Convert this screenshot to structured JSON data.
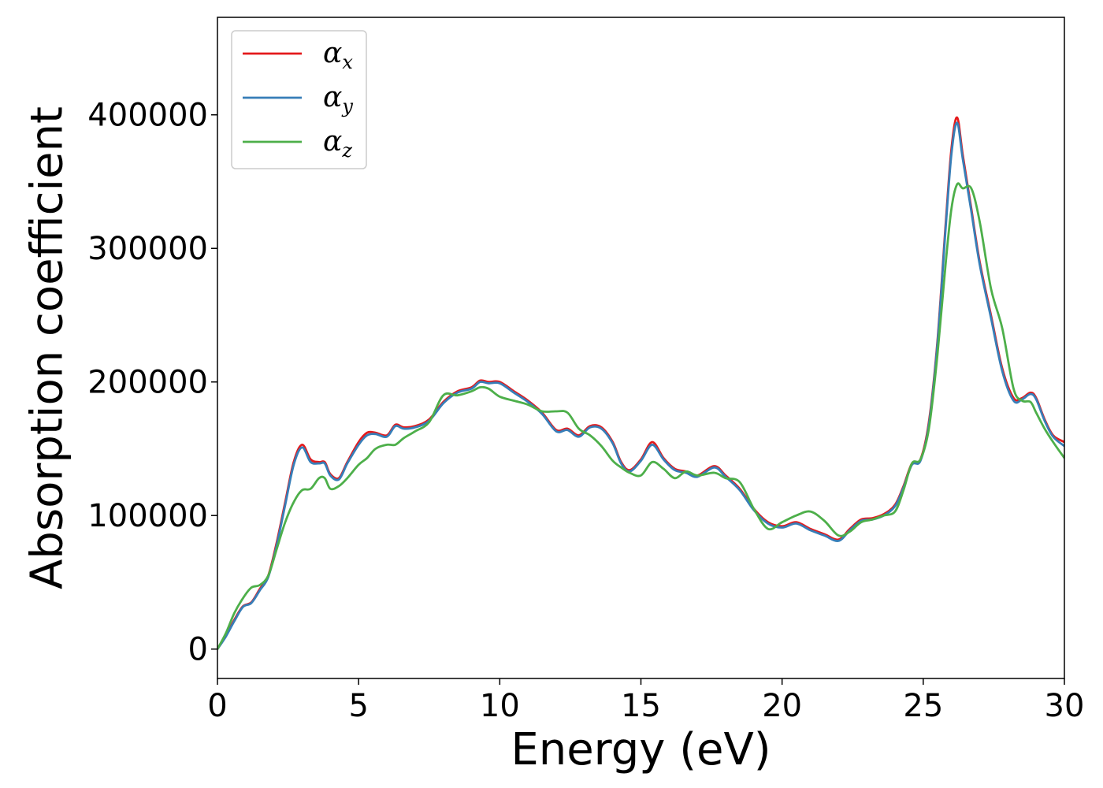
{
  "chart_data": {
    "type": "line",
    "xlabel": "Energy (eV)",
    "ylabel": "Absorption coefficient",
    "xlim": [
      0,
      30
    ],
    "ylim": [
      -22000,
      473000
    ],
    "xticks": [
      0,
      5,
      10,
      15,
      20,
      25,
      30
    ],
    "xtick_labels": [
      "0",
      "5",
      "10",
      "15",
      "20",
      "25",
      "30"
    ],
    "yticks": [
      0,
      100000,
      200000,
      300000,
      400000
    ],
    "ytick_labels": [
      "0",
      "100000",
      "200000",
      "300000",
      "400000"
    ],
    "grid": false,
    "legend_position": "upper-left",
    "series": [
      {
        "name": "α",
        "subscript": "x",
        "color": "#e41a1c",
        "x": [
          0,
          0.3,
          0.6,
          0.9,
          1.2,
          1.5,
          1.8,
          2.1,
          2.4,
          2.7,
          3.0,
          3.3,
          3.6,
          3.8,
          4.0,
          4.3,
          4.6,
          5.0,
          5.3,
          5.6,
          6.0,
          6.3,
          6.6,
          7.0,
          7.5,
          8.0,
          8.5,
          9.0,
          9.3,
          9.6,
          10.0,
          10.5,
          11.0,
          11.5,
          12.0,
          12.4,
          12.8,
          13.2,
          13.6,
          14.0,
          14.3,
          14.6,
          15.0,
          15.4,
          15.8,
          16.2,
          16.6,
          17.0,
          17.6,
          18.0,
          18.5,
          19.0,
          19.5,
          20.0,
          20.5,
          21.0,
          21.5,
          22.0,
          22.4,
          22.8,
          23.2,
          23.6,
          24.0,
          24.3,
          24.6,
          24.9,
          25.2,
          25.5,
          25.8,
          26.0,
          26.2,
          26.4,
          26.7,
          27.0,
          27.4,
          27.8,
          28.2,
          28.5,
          28.8,
          29.0,
          29.3,
          29.6,
          30.0
        ],
        "values": [
          0,
          10000,
          22000,
          32000,
          35000,
          45000,
          55000,
          80000,
          110000,
          140000,
          153000,
          142000,
          140000,
          140000,
          131000,
          128000,
          140000,
          155000,
          162000,
          162000,
          160000,
          168000,
          166000,
          167000,
          172000,
          185000,
          193000,
          196000,
          201000,
          200000,
          200000,
          193000,
          186000,
          177000,
          164000,
          165000,
          160000,
          167000,
          166000,
          155000,
          140000,
          134000,
          142000,
          155000,
          143000,
          135000,
          133000,
          130000,
          137000,
          130000,
          120000,
          105000,
          95000,
          92000,
          95000,
          90000,
          86000,
          82000,
          90000,
          97000,
          98000,
          101000,
          108000,
          122000,
          139000,
          142000,
          170000,
          230000,
          320000,
          375000,
          398000,
          370000,
          330000,
          290000,
          250000,
          210000,
          188000,
          188000,
          192000,
          188000,
          172000,
          160000,
          155000
        ]
      },
      {
        "name": "α",
        "subscript": "y",
        "color": "#377eb8",
        "x": [
          0,
          0.3,
          0.6,
          0.9,
          1.2,
          1.5,
          1.8,
          2.1,
          2.4,
          2.7,
          3.0,
          3.3,
          3.6,
          3.8,
          4.0,
          4.3,
          4.6,
          5.0,
          5.3,
          5.6,
          6.0,
          6.3,
          6.6,
          7.0,
          7.5,
          8.0,
          8.5,
          9.0,
          9.3,
          9.6,
          10.0,
          10.5,
          11.0,
          11.5,
          12.0,
          12.4,
          12.8,
          13.2,
          13.6,
          14.0,
          14.3,
          14.6,
          15.0,
          15.4,
          15.8,
          16.2,
          16.6,
          17.0,
          17.6,
          18.0,
          18.5,
          19.0,
          19.5,
          20.0,
          20.5,
          21.0,
          21.5,
          22.0,
          22.4,
          22.8,
          23.2,
          23.6,
          24.0,
          24.3,
          24.6,
          24.9,
          25.2,
          25.5,
          25.8,
          26.0,
          26.2,
          26.4,
          26.7,
          27.0,
          27.4,
          27.8,
          28.2,
          28.5,
          28.8,
          29.0,
          29.3,
          29.6,
          30.0
        ],
        "values": [
          0,
          9500,
          21000,
          31500,
          34500,
          44000,
          54000,
          78000,
          108000,
          138000,
          151000,
          140000,
          139000,
          139000,
          130000,
          127000,
          139000,
          153000,
          160000,
          161000,
          159000,
          167000,
          165000,
          166000,
          171000,
          184000,
          192000,
          195000,
          200000,
          199000,
          199000,
          192000,
          185000,
          176000,
          163000,
          164000,
          159000,
          166000,
          165000,
          154000,
          139000,
          133000,
          141000,
          153000,
          142000,
          134000,
          132000,
          129000,
          136000,
          129000,
          119000,
          104000,
          94000,
          91000,
          94000,
          89000,
          85000,
          81000,
          89000,
          96000,
          97000,
          100000,
          107000,
          121000,
          138000,
          141000,
          168000,
          228000,
          317000,
          371000,
          394000,
          367000,
          328000,
          288000,
          248000,
          208000,
          186000,
          187000,
          191000,
          187000,
          171000,
          159000,
          152000
        ]
      },
      {
        "name": "α",
        "subscript": "z",
        "color": "#4daf4a",
        "x": [
          0,
          0.3,
          0.6,
          0.9,
          1.2,
          1.5,
          1.8,
          2.1,
          2.4,
          2.7,
          3.0,
          3.3,
          3.6,
          3.8,
          4.0,
          4.3,
          4.6,
          5.0,
          5.3,
          5.6,
          6.0,
          6.3,
          6.6,
          7.0,
          7.5,
          8.0,
          8.5,
          9.0,
          9.3,
          9.6,
          10.0,
          10.5,
          11.0,
          11.5,
          12.0,
          12.4,
          12.8,
          13.2,
          13.6,
          14.0,
          14.3,
          14.6,
          15.0,
          15.4,
          15.8,
          16.2,
          16.6,
          17.0,
          17.6,
          18.0,
          18.5,
          19.0,
          19.5,
          20.0,
          20.5,
          21.0,
          21.5,
          22.0,
          22.4,
          22.8,
          23.2,
          23.6,
          24.0,
          24.3,
          24.6,
          24.9,
          25.2,
          25.5,
          25.8,
          26.0,
          26.2,
          26.4,
          26.7,
          27.0,
          27.4,
          27.8,
          28.2,
          28.5,
          28.8,
          29.0,
          29.3,
          29.6,
          30.0
        ],
        "values": [
          0,
          12000,
          27000,
          38000,
          46000,
          48000,
          55000,
          75000,
          95000,
          110000,
          119000,
          120000,
          128000,
          128000,
          120000,
          122000,
          128000,
          138000,
          143000,
          150000,
          153000,
          153000,
          158000,
          163000,
          170000,
          190000,
          190000,
          193000,
          196000,
          195000,
          189000,
          186000,
          183000,
          178000,
          178000,
          177000,
          165000,
          160000,
          152000,
          141000,
          136000,
          132000,
          130000,
          140000,
          135000,
          128000,
          133000,
          130000,
          132000,
          128000,
          125000,
          105000,
          90000,
          95000,
          100000,
          103000,
          96000,
          85000,
          88000,
          95000,
          97000,
          100000,
          103000,
          119000,
          139000,
          142000,
          165000,
          220000,
          290000,
          330000,
          348000,
          345000,
          345000,
          320000,
          270000,
          240000,
          195000,
          186000,
          185000,
          177000,
          165000,
          155000,
          143000
        ]
      }
    ]
  }
}
